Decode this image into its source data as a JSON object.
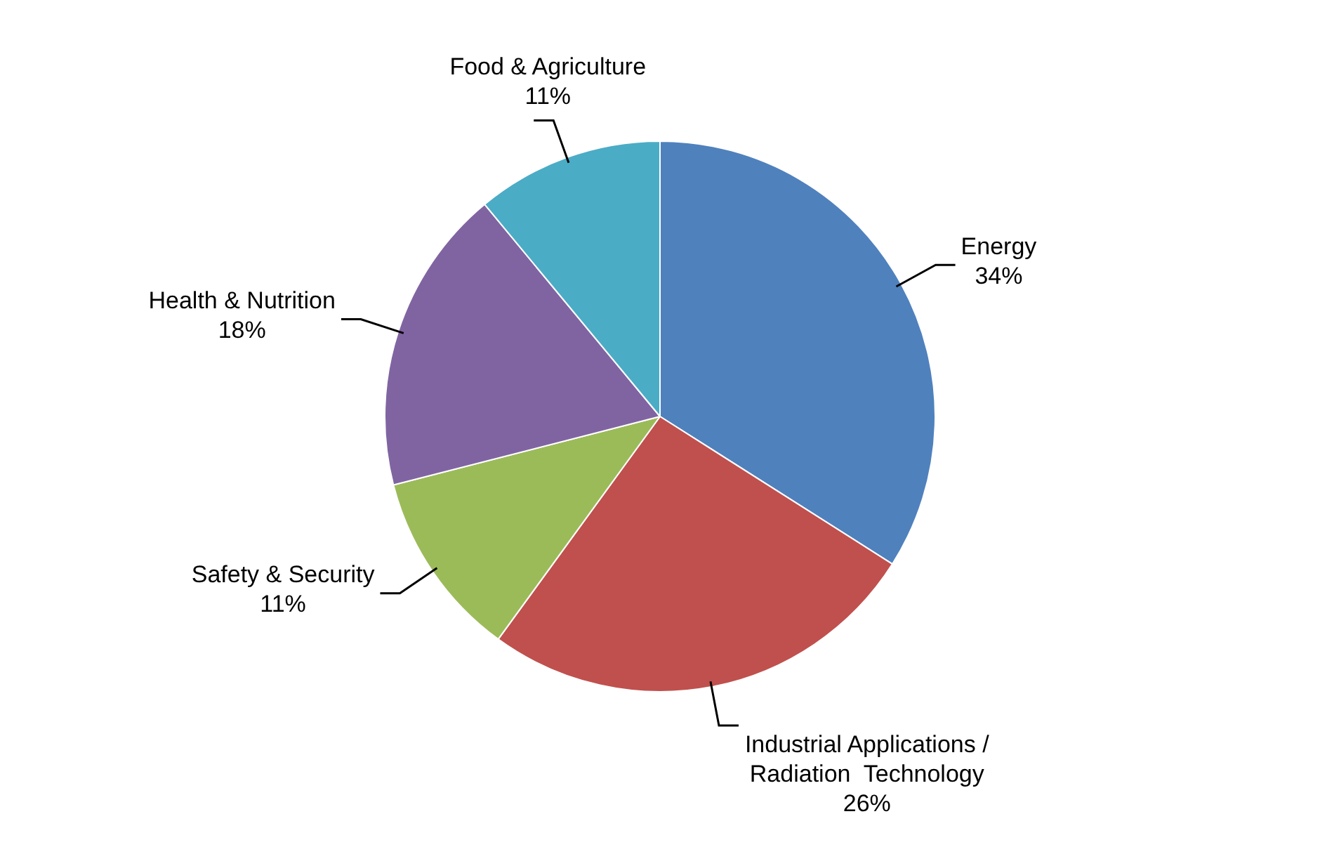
{
  "chart_data": {
    "type": "pie",
    "categories": [
      "Energy",
      "Industrial Applications / Radiation  Technology",
      "Safety & Security",
      "Health & Nutrition",
      "Food & Agriculture"
    ],
    "values": [
      34,
      26,
      11,
      18,
      11
    ],
    "value_labels": [
      "34%",
      "26%",
      "11%",
      "18%",
      "11%"
    ],
    "colors": [
      "#4f81bd",
      "#c0504d",
      "#9bbb59",
      "#8064a2",
      "#4bacc6"
    ],
    "legend": false
  }
}
